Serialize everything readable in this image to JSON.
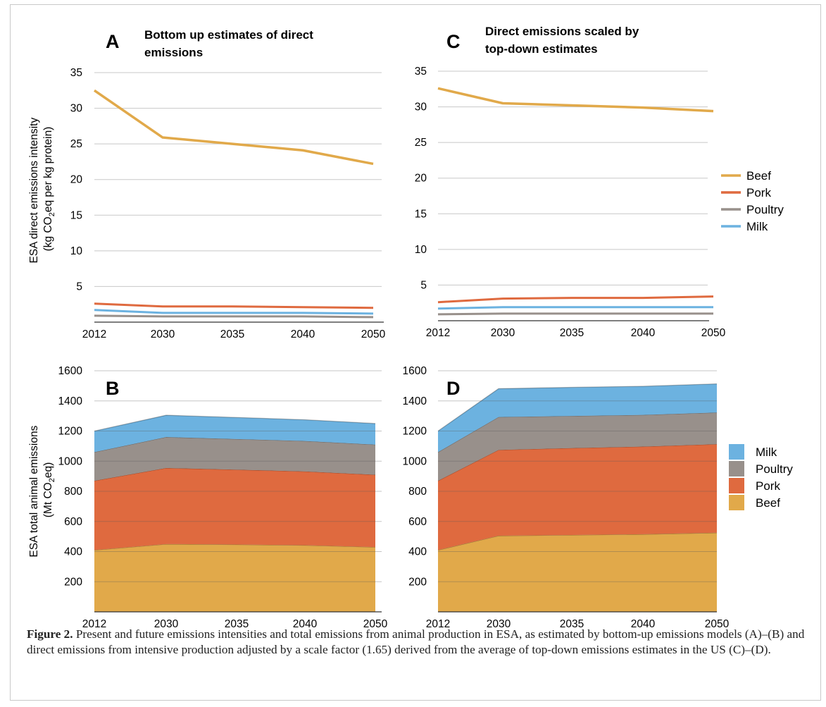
{
  "legend_labels": {
    "top": [
      "Beef",
      "Pork",
      "Poultry",
      "Milk"
    ],
    "bottom": [
      "Milk",
      "Poultry",
      "Pork",
      "Beef"
    ]
  },
  "colors": {
    "Beef": "#e1a94a",
    "Pork": "#df6a3f",
    "Poultry": "#98908b",
    "Milk": "#6cb2e0"
  },
  "chart_data": [
    {
      "panel": "A",
      "type": "line",
      "title": "Bottom up estimates of direct emissions",
      "ylabel": "ESA direct emissions intensity (kg CO2eq per kg protein)",
      "categories": [
        "2012",
        "2030",
        "2035",
        "2040",
        "2050"
      ],
      "yticks": [
        5,
        10,
        15,
        20,
        25,
        30,
        35
      ],
      "ylim": [
        0,
        35
      ],
      "series": [
        {
          "name": "Beef",
          "values": [
            32.5,
            25.9,
            25.0,
            24.1,
            22.2
          ]
        },
        {
          "name": "Pork",
          "values": [
            2.6,
            2.2,
            2.2,
            2.1,
            2.0
          ]
        },
        {
          "name": "Poultry",
          "values": [
            0.9,
            0.8,
            0.8,
            0.8,
            0.7
          ]
        },
        {
          "name": "Milk",
          "values": [
            1.7,
            1.3,
            1.3,
            1.3,
            1.2
          ]
        }
      ]
    },
    {
      "panel": "C",
      "type": "line",
      "title": "Direct emissions scaled by top-down estimates",
      "ylabel": "",
      "categories": [
        "2012",
        "2030",
        "2035",
        "2040",
        "2050"
      ],
      "yticks": [
        5,
        10,
        15,
        20,
        25,
        30,
        35
      ],
      "ylim": [
        0,
        35
      ],
      "series": [
        {
          "name": "Beef",
          "values": [
            32.6,
            30.5,
            30.2,
            29.9,
            29.4
          ]
        },
        {
          "name": "Pork",
          "values": [
            2.6,
            3.1,
            3.2,
            3.2,
            3.4
          ]
        },
        {
          "name": "Poultry",
          "values": [
            0.9,
            1.0,
            1.0,
            1.0,
            1.0
          ]
        },
        {
          "name": "Milk",
          "values": [
            1.7,
            1.9,
            1.9,
            1.9,
            1.9
          ]
        }
      ]
    },
    {
      "panel": "B",
      "type": "area",
      "stacked": true,
      "title": "",
      "ylabel": "ESA total animal emissions (Mt CO2eq)",
      "categories": [
        "2012",
        "2030",
        "2035",
        "2040",
        "2050"
      ],
      "yticks": [
        200,
        400,
        600,
        800,
        1000,
        1200,
        1400,
        1600
      ],
      "ylim": [
        0,
        1600
      ],
      "series": [
        {
          "name": "Beef",
          "values": [
            410,
            450,
            447,
            442,
            430
          ]
        },
        {
          "name": "Pork",
          "values": [
            460,
            505,
            497,
            490,
            480
          ]
        },
        {
          "name": "Poultry",
          "values": [
            190,
            205,
            203,
            202,
            200
          ]
        },
        {
          "name": "Milk",
          "values": [
            140,
            145,
            143,
            141,
            140
          ]
        }
      ]
    },
    {
      "panel": "D",
      "type": "area",
      "stacked": true,
      "title": "",
      "ylabel": "",
      "categories": [
        "2012",
        "2030",
        "2035",
        "2040",
        "2050"
      ],
      "yticks": [
        200,
        400,
        600,
        800,
        1000,
        1200,
        1400,
        1600
      ],
      "ylim": [
        0,
        1600
      ],
      "series": [
        {
          "name": "Beef",
          "values": [
            410,
            505,
            510,
            515,
            525
          ]
        },
        {
          "name": "Pork",
          "values": [
            460,
            570,
            577,
            582,
            588
          ]
        },
        {
          "name": "Poultry",
          "values": [
            190,
            218,
            213,
            210,
            210
          ]
        },
        {
          "name": "Milk",
          "values": [
            140,
            188,
            190,
            190,
            190
          ]
        }
      ]
    }
  ],
  "caption": {
    "label": "Figure 2.",
    "text": " Present and future emissions intensities and total emissions from animal production in ESA, as estimated by bottom-up emissions models (A)–(B) and direct emissions from intensive production adjusted by a scale factor (1.65) derived from the average of top-down emissions estimates in the US (C)–(D)."
  }
}
